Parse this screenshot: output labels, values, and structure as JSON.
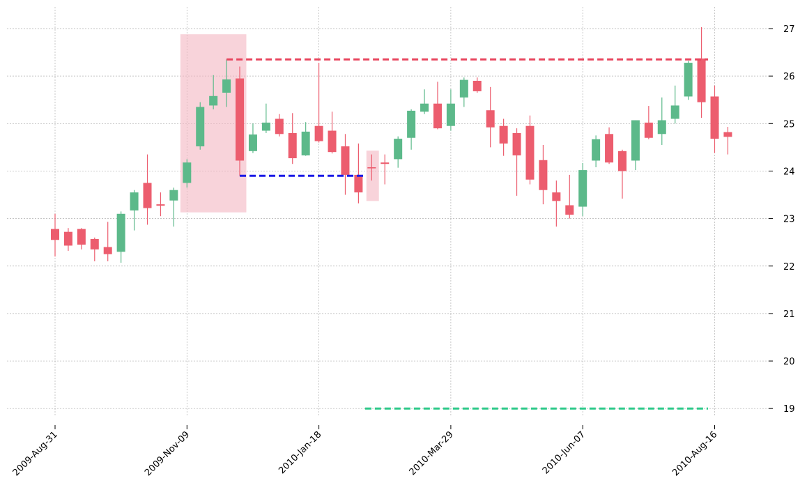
{
  "chart_data": {
    "type": "candlestick",
    "title": "",
    "xlabel": "",
    "ylabel": "",
    "ylim": [
      18.6,
      27.4
    ],
    "y_ticks": [
      19,
      20,
      21,
      22,
      23,
      24,
      25,
      26,
      27
    ],
    "y_axis_side": "right",
    "grid": true,
    "x_tick_labels": [
      "2009-Aug-31",
      "2009-Nov-09",
      "2010-Jan-18",
      "2010-Mar-29",
      "2010-Jun-07",
      "2010-Aug-16"
    ],
    "x_tick_indices": [
      0,
      10,
      20,
      30,
      40,
      50
    ],
    "colors": {
      "up": "#5cb98a",
      "down": "#ec5d6e",
      "highlight": "#f4b6c2",
      "resistance": "#e8455e",
      "support": "#1a1ae6",
      "target": "#2ec98a"
    },
    "candles": [
      {
        "date": "2009-Aug-31",
        "open": 22.78,
        "high": 23.1,
        "low": 22.2,
        "close": 22.55
      },
      {
        "date": "2009-Sep-07",
        "open": 22.72,
        "high": 22.8,
        "low": 22.32,
        "close": 22.43
      },
      {
        "date": "2009-Sep-14",
        "open": 22.78,
        "high": 22.8,
        "low": 22.35,
        "close": 22.45
      },
      {
        "date": "2009-Sep-21",
        "open": 22.57,
        "high": 22.6,
        "low": 22.1,
        "close": 22.35
      },
      {
        "date": "2009-Sep-28",
        "open": 22.4,
        "high": 22.93,
        "low": 22.1,
        "close": 22.25
      },
      {
        "date": "2009-Oct-05",
        "open": 22.3,
        "high": 23.15,
        "low": 22.07,
        "close": 23.1
      },
      {
        "date": "2009-Oct-12",
        "open": 23.17,
        "high": 23.6,
        "low": 22.75,
        "close": 23.55
      },
      {
        "date": "2009-Oct-19",
        "open": 23.75,
        "high": 24.35,
        "low": 22.87,
        "close": 23.22
      },
      {
        "date": "2009-Oct-26",
        "open": 23.3,
        "high": 23.55,
        "low": 23.05,
        "close": 23.27
      },
      {
        "date": "2009-Nov-02",
        "open": 23.38,
        "high": 23.65,
        "low": 22.83,
        "close": 23.6
      },
      {
        "date": "2009-Nov-09",
        "open": 23.75,
        "high": 24.25,
        "low": 23.65,
        "close": 24.18
      },
      {
        "date": "2009-Nov-16",
        "open": 24.52,
        "high": 25.45,
        "low": 24.45,
        "close": 25.35
      },
      {
        "date": "2009-Nov-23",
        "open": 25.38,
        "high": 26.02,
        "low": 25.3,
        "close": 25.58
      },
      {
        "date": "2009-Nov-30",
        "open": 25.65,
        "high": 26.35,
        "low": 25.35,
        "close": 25.93
      },
      {
        "date": "2009-Dec-07",
        "open": 25.95,
        "high": 26.2,
        "low": 23.9,
        "close": 24.22
      },
      {
        "date": "2009-Dec-14",
        "open": 24.42,
        "high": 25.0,
        "low": 24.38,
        "close": 24.77
      },
      {
        "date": "2009-Dec-21",
        "open": 24.85,
        "high": 25.42,
        "low": 24.8,
        "close": 25.02
      },
      {
        "date": "2009-Dec-28",
        "open": 25.1,
        "high": 25.2,
        "low": 24.73,
        "close": 24.78
      },
      {
        "date": "2010-Jan-04",
        "open": 24.8,
        "high": 25.22,
        "low": 24.15,
        "close": 24.27
      },
      {
        "date": "2010-Jan-11",
        "open": 24.33,
        "high": 25.03,
        "low": 24.32,
        "close": 24.83
      },
      {
        "date": "2010-Jan-18",
        "open": 24.95,
        "high": 26.28,
        "low": 24.6,
        "close": 24.63
      },
      {
        "date": "2010-Jan-25",
        "open": 24.85,
        "high": 25.25,
        "low": 24.37,
        "close": 24.4
      },
      {
        "date": "2010-Feb-01",
        "open": 24.52,
        "high": 24.78,
        "low": 23.5,
        "close": 23.92
      },
      {
        "date": "2010-Feb-08",
        "open": 23.92,
        "high": 24.58,
        "low": 23.32,
        "close": 23.55
      },
      {
        "date": "2010-Feb-15",
        "open": 24.08,
        "high": 24.35,
        "low": 23.8,
        "close": 24.07
      },
      {
        "date": "2010-Feb-22",
        "open": 24.18,
        "high": 24.35,
        "low": 23.72,
        "close": 24.15
      },
      {
        "date": "2010-Mar-01",
        "open": 24.25,
        "high": 24.73,
        "low": 24.07,
        "close": 24.68
      },
      {
        "date": "2010-Mar-08",
        "open": 24.7,
        "high": 25.3,
        "low": 24.45,
        "close": 25.27
      },
      {
        "date": "2010-Mar-15",
        "open": 25.25,
        "high": 25.72,
        "low": 25.2,
        "close": 25.42
      },
      {
        "date": "2010-Mar-22",
        "open": 25.42,
        "high": 25.88,
        "low": 24.88,
        "close": 24.9
      },
      {
        "date": "2010-Mar-29",
        "open": 24.95,
        "high": 25.72,
        "low": 24.85,
        "close": 25.42
      },
      {
        "date": "2010-Apr-05",
        "open": 25.55,
        "high": 25.97,
        "low": 25.35,
        "close": 25.92
      },
      {
        "date": "2010-Apr-12",
        "open": 25.9,
        "high": 25.97,
        "low": 25.65,
        "close": 25.68
      },
      {
        "date": "2010-Apr-19",
        "open": 25.28,
        "high": 25.77,
        "low": 24.5,
        "close": 24.92
      },
      {
        "date": "2010-Apr-26",
        "open": 24.95,
        "high": 25.1,
        "low": 24.32,
        "close": 24.58
      },
      {
        "date": "2010-May-03",
        "open": 24.8,
        "high": 24.9,
        "low": 23.48,
        "close": 24.33
      },
      {
        "date": "2010-May-10",
        "open": 24.95,
        "high": 25.17,
        "low": 23.72,
        "close": 23.82
      },
      {
        "date": "2010-May-17",
        "open": 24.23,
        "high": 24.55,
        "low": 23.3,
        "close": 23.6
      },
      {
        "date": "2010-May-24",
        "open": 23.55,
        "high": 23.8,
        "low": 22.83,
        "close": 23.37
      },
      {
        "date": "2010-May-31",
        "open": 23.28,
        "high": 23.92,
        "low": 23.0,
        "close": 23.08
      },
      {
        "date": "2010-Jun-07",
        "open": 23.25,
        "high": 24.17,
        "low": 23.05,
        "close": 24.02
      },
      {
        "date": "2010-Jun-14",
        "open": 24.22,
        "high": 24.75,
        "low": 24.08,
        "close": 24.67
      },
      {
        "date": "2010-Jun-21",
        "open": 24.78,
        "high": 24.92,
        "low": 24.15,
        "close": 24.18
      },
      {
        "date": "2010-Jun-28",
        "open": 24.42,
        "high": 24.45,
        "low": 23.42,
        "close": 24.0
      },
      {
        "date": "2010-Jul-05",
        "open": 24.22,
        "high": 25.07,
        "low": 24.02,
        "close": 25.07
      },
      {
        "date": "2010-Jul-12",
        "open": 25.02,
        "high": 25.37,
        "low": 24.67,
        "close": 24.7
      },
      {
        "date": "2010-Jul-19",
        "open": 24.78,
        "high": 25.55,
        "low": 24.55,
        "close": 25.07
      },
      {
        "date": "2010-Jul-26",
        "open": 25.1,
        "high": 25.8,
        "low": 25.0,
        "close": 25.38
      },
      {
        "date": "2010-Aug-02",
        "open": 25.57,
        "high": 26.32,
        "low": 25.5,
        "close": 26.28
      },
      {
        "date": "2010-Aug-09",
        "open": 26.37,
        "high": 27.03,
        "low": 25.12,
        "close": 25.45
      },
      {
        "date": "2010-Aug-16",
        "open": 25.57,
        "high": 25.8,
        "low": 24.38,
        "close": 24.68
      },
      {
        "date": "2010-Aug-23",
        "open": 24.82,
        "high": 24.93,
        "low": 24.35,
        "close": 24.72
      }
    ],
    "highlight_boxes": [
      {
        "x_from": 9.5,
        "x_to": 14.5,
        "y_from": 23.13,
        "y_to": 26.88
      },
      {
        "x_from": 23.6,
        "x_to": 24.55,
        "y_from": 23.37,
        "y_to": 24.43
      }
    ],
    "levels": [
      {
        "name": "resistance",
        "y": 26.35,
        "x_from": 13,
        "x_to": 49.5
      },
      {
        "name": "support",
        "y": 23.9,
        "x_from": 14,
        "x_to": 23.5
      },
      {
        "name": "target",
        "y": 19.0,
        "x_from": 23.5,
        "x_to": 49.5
      }
    ]
  }
}
